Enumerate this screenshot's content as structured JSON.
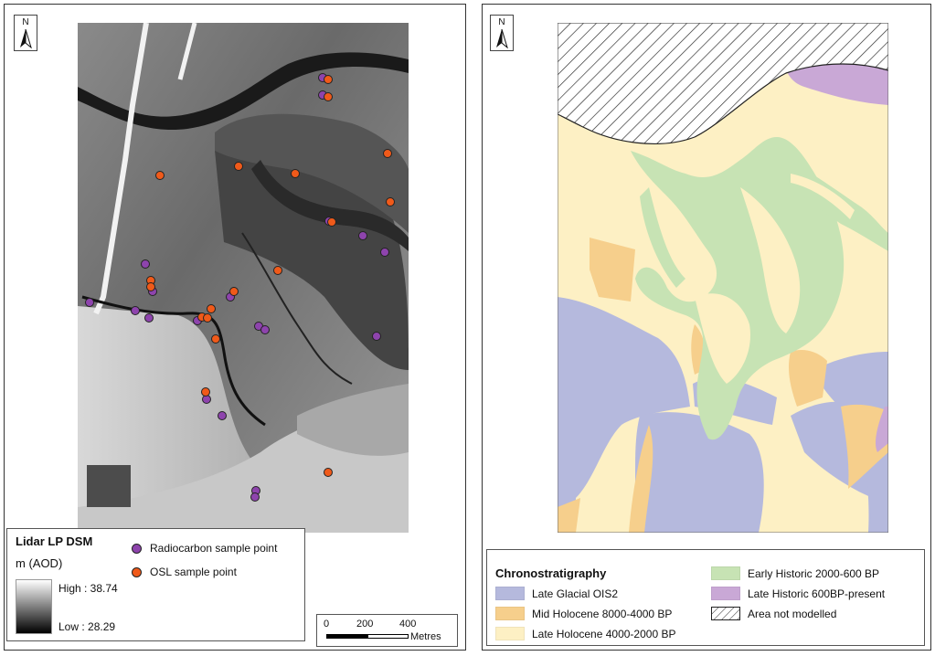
{
  "north_label": "N",
  "lidar_legend": {
    "title": "Lidar LP DSM",
    "unit": "m (AOD)",
    "high_label": "High : 38.74",
    "low_label": "Low : 28.29",
    "points": [
      {
        "label": "Radiocarbon sample point",
        "color": "#8e44ad"
      },
      {
        "label": "OSL sample point",
        "color": "#f05a1a"
      }
    ]
  },
  "scale_bar": {
    "ticks": [
      "0",
      "200",
      "400"
    ],
    "units": "Metres"
  },
  "chrono_legend": {
    "title": "Chronostratigraphy",
    "items": [
      {
        "label": "Late Glacial OIS2",
        "color": "#b5b9dd"
      },
      {
        "label": "Mid Holocene 8000-4000 BP",
        "color": "#f6cf8c"
      },
      {
        "label": "Late Holocene 4000-2000 BP",
        "color": "#fdf0c4"
      },
      {
        "label": "Early Historic 2000-600 BP",
        "color": "#c7e3b4"
      },
      {
        "label": "Late Historic 600BP-present",
        "color": "#c9a8d6"
      },
      {
        "label": "Area not modelled",
        "color": "#ffffff"
      }
    ]
  }
}
